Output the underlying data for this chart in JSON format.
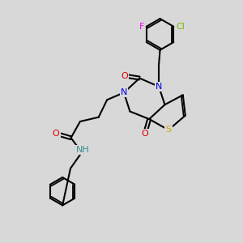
{
  "bg_color": "#d8d8d8",
  "bond_color": "#000000",
  "bond_lw": 1.5,
  "atom_colors": {
    "N": "#0000ee",
    "O": "#dd0000",
    "S": "#ccaa00",
    "Cl": "#77bb00",
    "F": "#ee00ee",
    "H": "#3d8f8f",
    "C": "#000000"
  },
  "font_size": 8.0
}
